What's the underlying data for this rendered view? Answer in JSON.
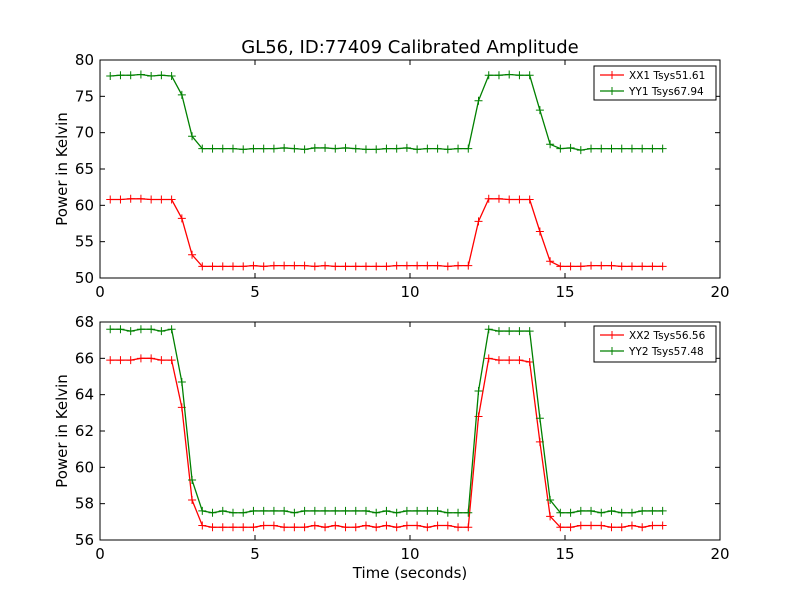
{
  "title": "GL56, ID:77409 Calibrated Amplitude",
  "chart_data": [
    {
      "type": "line",
      "title": "GL56, ID:77409 Calibrated Amplitude",
      "xlabel": "",
      "ylabel": "Power in Kelvin",
      "xlim": [
        0,
        20
      ],
      "ylim": [
        50,
        80
      ],
      "xticks": [
        "0",
        "5",
        "10",
        "15",
        "20"
      ],
      "yticks": [
        "50",
        "55",
        "60",
        "65",
        "70",
        "75",
        "80"
      ],
      "grid": false,
      "legend_position": "top-right",
      "x": [
        0.33,
        0.66,
        0.99,
        1.32,
        1.65,
        1.98,
        2.31,
        2.64,
        2.97,
        3.3,
        3.63,
        3.96,
        4.29,
        4.62,
        4.95,
        5.28,
        5.61,
        5.94,
        6.27,
        6.6,
        6.93,
        7.26,
        7.59,
        7.92,
        8.25,
        8.58,
        8.91,
        9.24,
        9.57,
        9.9,
        10.23,
        10.56,
        10.89,
        11.22,
        11.55,
        11.88,
        12.21,
        12.54,
        12.87,
        13.2,
        13.53,
        13.86,
        14.19,
        14.52,
        14.85,
        15.18,
        15.51,
        15.84,
        16.17,
        16.5,
        16.83,
        17.16,
        17.49,
        17.82,
        18.15
      ],
      "series": [
        {
          "name": "XX1 Tsys51.61",
          "color": "#ff0000",
          "values": [
            60.8,
            60.8,
            60.9,
            60.9,
            60.8,
            60.8,
            60.8,
            58.2,
            53.2,
            51.6,
            51.6,
            51.6,
            51.6,
            51.6,
            51.7,
            51.6,
            51.7,
            51.7,
            51.7,
            51.7,
            51.6,
            51.7,
            51.6,
            51.6,
            51.6,
            51.6,
            51.6,
            51.6,
            51.7,
            51.7,
            51.7,
            51.7,
            51.7,
            51.6,
            51.7,
            51.7,
            57.8,
            60.9,
            60.9,
            60.8,
            60.8,
            60.8,
            56.4,
            52.3,
            51.6,
            51.6,
            51.6,
            51.7,
            51.7,
            51.7,
            51.6,
            51.6,
            51.6,
            51.6,
            51.6
          ]
        },
        {
          "name": "YY1 Tsys67.94",
          "color": "#008000",
          "values": [
            77.8,
            77.9,
            77.9,
            78.0,
            77.8,
            77.9,
            77.8,
            75.2,
            69.5,
            67.8,
            67.8,
            67.8,
            67.8,
            67.7,
            67.8,
            67.8,
            67.8,
            67.9,
            67.8,
            67.7,
            67.9,
            67.9,
            67.8,
            67.9,
            67.8,
            67.7,
            67.7,
            67.8,
            67.8,
            67.9,
            67.7,
            67.8,
            67.8,
            67.7,
            67.8,
            67.8,
            74.4,
            77.9,
            77.9,
            78.0,
            77.9,
            77.9,
            73.1,
            68.4,
            67.8,
            67.9,
            67.6,
            67.8,
            67.8,
            67.8,
            67.8,
            67.8,
            67.8,
            67.8,
            67.8
          ]
        }
      ]
    },
    {
      "type": "line",
      "title": "",
      "xlabel": "Time (seconds)",
      "ylabel": "Power in Kelvin",
      "xlim": [
        0,
        20
      ],
      "ylim": [
        56,
        68
      ],
      "xticks": [
        "0",
        "5",
        "10",
        "15",
        "20"
      ],
      "yticks": [
        "56",
        "58",
        "60",
        "62",
        "64",
        "66",
        "68"
      ],
      "grid": false,
      "legend_position": "top-right",
      "x": [
        0.33,
        0.66,
        0.99,
        1.32,
        1.65,
        1.98,
        2.31,
        2.64,
        2.97,
        3.3,
        3.63,
        3.96,
        4.29,
        4.62,
        4.95,
        5.28,
        5.61,
        5.94,
        6.27,
        6.6,
        6.93,
        7.26,
        7.59,
        7.92,
        8.25,
        8.58,
        8.91,
        9.24,
        9.57,
        9.9,
        10.23,
        10.56,
        10.89,
        11.22,
        11.55,
        11.88,
        12.21,
        12.54,
        12.87,
        13.2,
        13.53,
        13.86,
        14.19,
        14.52,
        14.85,
        15.18,
        15.51,
        15.84,
        16.17,
        16.5,
        16.83,
        17.16,
        17.49,
        17.82,
        18.15
      ],
      "series": [
        {
          "name": "XX2 Tsys56.56",
          "color": "#ff0000",
          "values": [
            65.9,
            65.9,
            65.9,
            66.0,
            66.0,
            65.9,
            65.9,
            63.3,
            58.2,
            56.8,
            56.7,
            56.7,
            56.7,
            56.7,
            56.7,
            56.8,
            56.8,
            56.7,
            56.7,
            56.7,
            56.8,
            56.7,
            56.8,
            56.7,
            56.7,
            56.8,
            56.7,
            56.8,
            56.7,
            56.8,
            56.8,
            56.7,
            56.8,
            56.8,
            56.7,
            56.7,
            62.8,
            66.0,
            65.9,
            65.9,
            65.9,
            65.8,
            61.4,
            57.3,
            56.7,
            56.7,
            56.8,
            56.8,
            56.8,
            56.7,
            56.7,
            56.8,
            56.7,
            56.8,
            56.8
          ]
        },
        {
          "name": "YY2 Tsys57.48",
          "color": "#008000",
          "values": [
            67.6,
            67.6,
            67.5,
            67.6,
            67.6,
            67.5,
            67.6,
            64.7,
            59.3,
            57.6,
            57.5,
            57.6,
            57.5,
            57.5,
            57.6,
            57.6,
            57.6,
            57.6,
            57.5,
            57.6,
            57.6,
            57.6,
            57.6,
            57.6,
            57.6,
            57.6,
            57.5,
            57.6,
            57.5,
            57.6,
            57.6,
            57.6,
            57.6,
            57.5,
            57.5,
            57.5,
            64.2,
            67.6,
            67.5,
            67.5,
            67.5,
            67.5,
            62.7,
            58.2,
            57.5,
            57.5,
            57.6,
            57.6,
            57.5,
            57.6,
            57.5,
            57.5,
            57.6,
            57.6,
            57.6
          ]
        }
      ]
    }
  ]
}
